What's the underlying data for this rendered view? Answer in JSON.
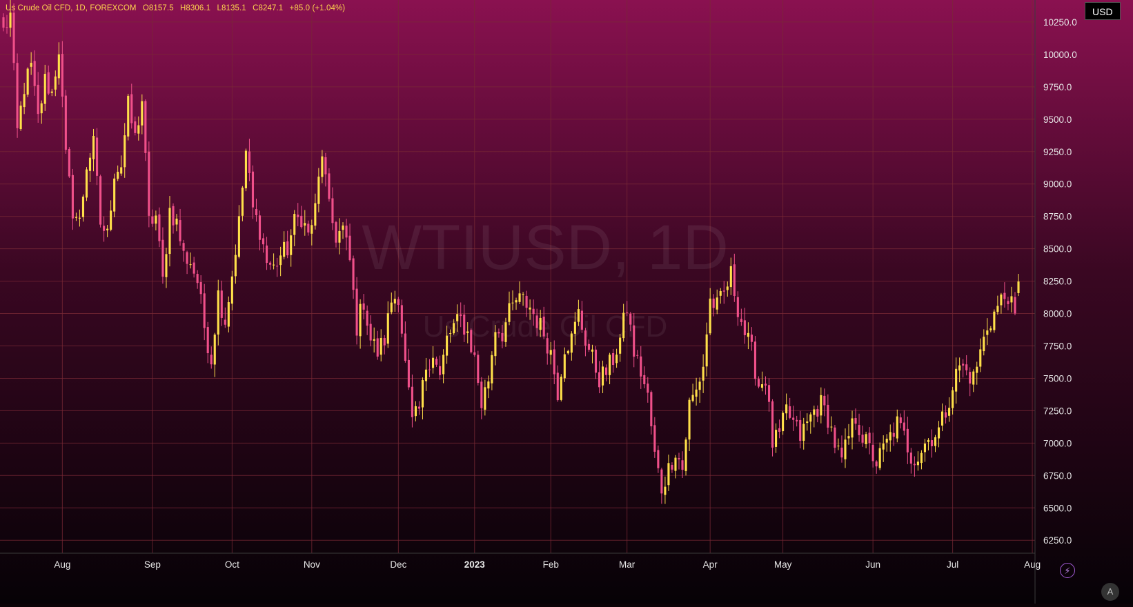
{
  "legend": {
    "symbol": "Us Crude Oil CFD, 1D, FOREXCOM",
    "open_label": "O",
    "open": "8157.5",
    "high_label": "H",
    "high": "8306.1",
    "low_label": "L",
    "low": "8135.1",
    "close_label": "C",
    "close": "8247.1",
    "change": "+85.0 (+1.04%)"
  },
  "watermark": {
    "ticker": "WTIUSD, 1D",
    "name": "Us Crude Oil CFD"
  },
  "currency": "USD",
  "buttons": {
    "auto": "A",
    "flash_icon": "lightning-icon"
  },
  "colors": {
    "up": "#ffe04a",
    "down": "#f0508a",
    "bg_top": "#8a1150",
    "bg_bottom": "#060206",
    "grid": "#7a2a36",
    "axis_text": "#e8e8e8"
  },
  "chart_data": {
    "type": "candlestick",
    "title": "",
    "ylabel": "",
    "xlabel": "",
    "ylim": [
      6150,
      10420
    ],
    "y_ticks": [
      "6250.0",
      "6500.0",
      "6750.0",
      "7000.0",
      "7250.0",
      "7500.0",
      "7750.0",
      "8000.0",
      "8250.0",
      "8500.0",
      "8750.0",
      "9000.0",
      "9250.0",
      "9500.0",
      "9750.0",
      "10000.0",
      "10250.0"
    ],
    "x_ticks": [
      "Aug",
      "Sep",
      "Oct",
      "Nov",
      "Dec",
      "2023",
      "Feb",
      "Mar",
      "Apr",
      "May",
      "Jun",
      "Jul",
      "Aug"
    ],
    "x_tick_positions": [
      17,
      43,
      66,
      89,
      114,
      136,
      158,
      180,
      204,
      225,
      251,
      274,
      297
    ],
    "anchors": [
      [
        0,
        10180
      ],
      [
        2,
        10300
      ],
      [
        4,
        9400
      ],
      [
        6,
        9750
      ],
      [
        8,
        9900
      ],
      [
        10,
        9500
      ],
      [
        12,
        9800
      ],
      [
        14,
        9700
      ],
      [
        16,
        10050
      ],
      [
        18,
        9200
      ],
      [
        20,
        8800
      ],
      [
        22,
        8700
      ],
      [
        24,
        9150
      ],
      [
        26,
        9300
      ],
      [
        28,
        8700
      ],
      [
        30,
        8600
      ],
      [
        32,
        9100
      ],
      [
        34,
        9150
      ],
      [
        36,
        9600
      ],
      [
        38,
        9350
      ],
      [
        40,
        9650
      ],
      [
        42,
        8700
      ],
      [
        44,
        8750
      ],
      [
        46,
        8250
      ],
      [
        48,
        8800
      ],
      [
        50,
        8700
      ],
      [
        52,
        8450
      ],
      [
        54,
        8400
      ],
      [
        56,
        8250
      ],
      [
        58,
        7900
      ],
      [
        60,
        7650
      ],
      [
        62,
        8150
      ],
      [
        64,
        7950
      ],
      [
        66,
        8300
      ],
      [
        68,
        8700
      ],
      [
        70,
        9250
      ],
      [
        72,
        8800
      ],
      [
        74,
        8650
      ],
      [
        76,
        8400
      ],
      [
        78,
        8350
      ],
      [
        80,
        8450
      ],
      [
        82,
        8500
      ],
      [
        84,
        8700
      ],
      [
        86,
        8750
      ],
      [
        88,
        8600
      ],
      [
        90,
        8800
      ],
      [
        92,
        9250
      ],
      [
        94,
        8800
      ],
      [
        96,
        8600
      ],
      [
        98,
        8650
      ],
      [
        100,
        8400
      ],
      [
        102,
        7900
      ],
      [
        104,
        8100
      ],
      [
        106,
        7800
      ],
      [
        108,
        7700
      ],
      [
        110,
        7800
      ],
      [
        112,
        8100
      ],
      [
        114,
        8150
      ],
      [
        116,
        7600
      ],
      [
        118,
        7150
      ],
      [
        120,
        7250
      ],
      [
        122,
        7600
      ],
      [
        124,
        7700
      ],
      [
        126,
        7500
      ],
      [
        128,
        7800
      ],
      [
        130,
        7900
      ],
      [
        132,
        7950
      ],
      [
        134,
        7850
      ],
      [
        136,
        7650
      ],
      [
        138,
        7300
      ],
      [
        140,
        7500
      ],
      [
        142,
        7900
      ],
      [
        144,
        7850
      ],
      [
        146,
        8000
      ],
      [
        148,
        8100
      ],
      [
        150,
        8100
      ],
      [
        152,
        8050
      ],
      [
        154,
        7950
      ],
      [
        156,
        7850
      ],
      [
        158,
        7700
      ],
      [
        160,
        7400
      ],
      [
        162,
        7750
      ],
      [
        164,
        7800
      ],
      [
        166,
        8000
      ],
      [
        168,
        7800
      ],
      [
        170,
        7650
      ],
      [
        172,
        7500
      ],
      [
        174,
        7550
      ],
      [
        176,
        7650
      ],
      [
        178,
        7800
      ],
      [
        180,
        8050
      ],
      [
        182,
        7700
      ],
      [
        184,
        7550
      ],
      [
        186,
        7350
      ],
      [
        188,
        6900
      ],
      [
        190,
        6650
      ],
      [
        192,
        6800
      ],
      [
        194,
        6950
      ],
      [
        196,
        6800
      ],
      [
        198,
        7300
      ],
      [
        200,
        7400
      ],
      [
        202,
        7600
      ],
      [
        204,
        8100
      ],
      [
        206,
        8050
      ],
      [
        208,
        8150
      ],
      [
        210,
        8300
      ],
      [
        212,
        8050
      ],
      [
        214,
        7850
      ],
      [
        216,
        7700
      ],
      [
        218,
        7450
      ],
      [
        220,
        7500
      ],
      [
        222,
        7000
      ],
      [
        224,
        7050
      ],
      [
        226,
        7250
      ],
      [
        228,
        7150
      ],
      [
        230,
        7050
      ],
      [
        232,
        7150
      ],
      [
        234,
        7250
      ],
      [
        236,
        7300
      ],
      [
        238,
        7200
      ],
      [
        240,
        7000
      ],
      [
        242,
        6850
      ],
      [
        244,
        7050
      ],
      [
        246,
        7200
      ],
      [
        248,
        7050
      ],
      [
        250,
        6950
      ],
      [
        252,
        6850
      ],
      [
        254,
        6950
      ],
      [
        256,
        7050
      ],
      [
        258,
        7150
      ],
      [
        260,
        7050
      ],
      [
        262,
        6900
      ],
      [
        264,
        6900
      ],
      [
        266,
        7000
      ],
      [
        268,
        7050
      ],
      [
        270,
        7100
      ],
      [
        272,
        7250
      ],
      [
        274,
        7450
      ],
      [
        276,
        7600
      ],
      [
        278,
        7550
      ],
      [
        280,
        7500
      ],
      [
        282,
        7700
      ],
      [
        284,
        7900
      ],
      [
        286,
        8000
      ],
      [
        288,
        8100
      ],
      [
        290,
        8150
      ],
      [
        292,
        7950
      ],
      [
        293,
        8247
      ]
    ]
  }
}
